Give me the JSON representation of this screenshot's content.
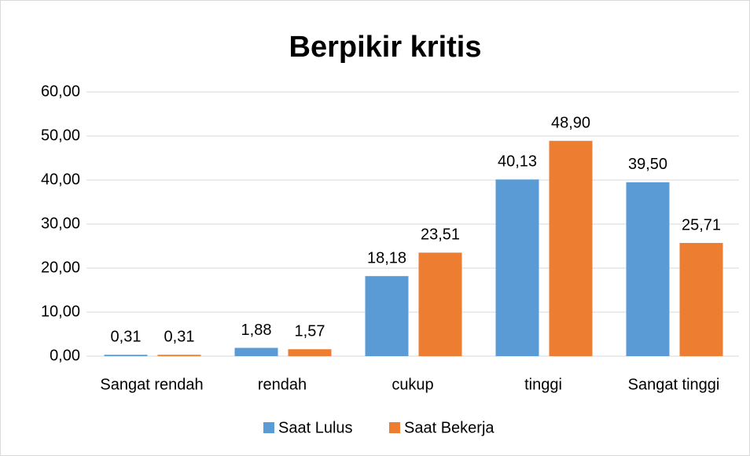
{
  "chart_data": {
    "type": "bar",
    "title": "Berpikir kritis",
    "categories": [
      "Sangat rendah",
      "rendah",
      "cukup",
      "tinggi",
      "Sangat tinggi"
    ],
    "series": [
      {
        "name": "Saat Lulus",
        "color": "#5b9bd5",
        "values": [
          0.31,
          1.88,
          18.18,
          40.13,
          39.5
        ],
        "value_labels": [
          "0,31",
          "1,88",
          "18,18",
          "40,13",
          "39,50"
        ]
      },
      {
        "name": "Saat Bekerja",
        "color": "#ed7d31",
        "values": [
          0.31,
          1.57,
          23.51,
          48.9,
          25.71
        ],
        "value_labels": [
          "0,31",
          "1,57",
          "23,51",
          "48,90",
          "25,71"
        ]
      }
    ],
    "ylim": [
      0,
      60
    ],
    "yticks": [
      {
        "value": 0,
        "label": "0,00"
      },
      {
        "value": 10,
        "label": "10,00"
      },
      {
        "value": 20,
        "label": "20,00"
      },
      {
        "value": 30,
        "label": "30,00"
      },
      {
        "value": 40,
        "label": "40,00"
      },
      {
        "value": 50,
        "label": "50,00"
      },
      {
        "value": 60,
        "label": "60,00"
      }
    ],
    "grid": true,
    "legend": "bottom"
  }
}
